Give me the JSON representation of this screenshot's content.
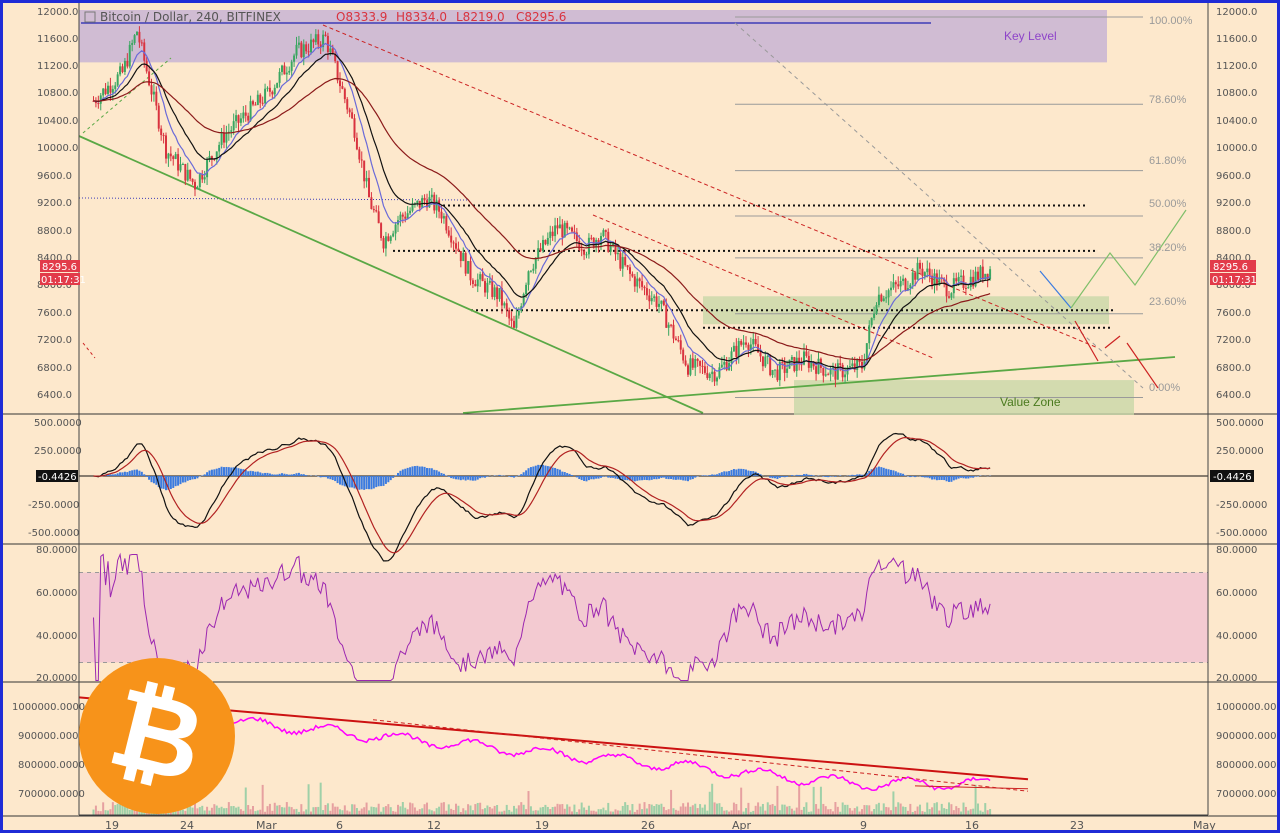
{
  "header": {
    "symbol": "Bitcoin / Dollar, 240, BITFINEX",
    "o": "O8333.9",
    "h": "H8334.0",
    "l": "L8219.0",
    "c": "C8295.6"
  },
  "colors": {
    "bg": "#fde8cc",
    "border": "#1f2bd6",
    "up": "#3aa661",
    "down": "#d9333f",
    "ema_fast": "#6a6ad8",
    "ema_mid": "#111111",
    "ema_slow": "#8b1a1a",
    "key_level": "#c8b4d4",
    "value_zone": "#c8d7a8",
    "macd_hist": "#3b7be0",
    "rsi_line": "#9c27b0",
    "rsi_band": "#f2c7d2",
    "obv_line": "#ff00ff",
    "fib": "#9a9a9a",
    "trend_green": "#5aa845",
    "trend_red": "#cc1111"
  },
  "price_panel": {
    "y_ticks": [
      "12000.0",
      "11600.0",
      "11200.0",
      "10800.0",
      "10400.0",
      "10000.0",
      "9600.0",
      "9200.0",
      "8800.0",
      "8400.0",
      "8000.0",
      "7600.0",
      "7200.0",
      "6800.0",
      "6400.0"
    ],
    "last_price": "8295.6",
    "countdown": "01:17:31",
    "key_level_label": "Key Level",
    "value_zone_label": "Value Zone",
    "fib_labels": [
      "100.00%",
      "78.60%",
      "61.80%",
      "50.00%",
      "38.20%",
      "23.60%",
      "0.00%"
    ]
  },
  "macd_panel": {
    "y_ticks": [
      "500.0000",
      "250.0000",
      "-250.0000",
      "-500.0000"
    ],
    "current": "-0.4426"
  },
  "rsi_panel": {
    "y_ticks": [
      "80.0000",
      "60.0000",
      "40.0000",
      "20.0000"
    ]
  },
  "obv_panel": {
    "y_ticks": [
      "1000000.0000",
      "900000.0000",
      "800000.0000",
      "700000.0000"
    ]
  },
  "x_axis": {
    "ticks": [
      "19",
      "24",
      "Mar",
      "6",
      "12",
      "19",
      "26",
      "Apr",
      "9",
      "16",
      "23",
      "May"
    ]
  },
  "logo": {
    "glyph": "₿",
    "name": "bitcoin-logo"
  },
  "chart_data": {
    "type": "candlestick",
    "title": "Bitcoin / Dollar, 240, BITFINEX",
    "ylim": [
      6200,
      12000
    ],
    "x": [
      "Feb 19",
      "Feb 24",
      "Mar 1",
      "Mar 6",
      "Mar 12",
      "Mar 19",
      "Mar 26",
      "Apr 1",
      "Apr 9",
      "Apr 16",
      "Apr 23",
      "May 1"
    ],
    "price_path": [
      [
        "Feb 17",
        10700
      ],
      [
        "Feb 19",
        11100
      ],
      [
        "Feb 20",
        11700
      ],
      [
        "Feb 22",
        10000
      ],
      [
        "Feb 24",
        9500
      ],
      [
        "Feb 26",
        10200
      ],
      [
        "Mar 1",
        10800
      ],
      [
        "Mar 3",
        11400
      ],
      [
        "Mar 5",
        11600
      ],
      [
        "Mar 7",
        10300
      ],
      [
        "Mar 8",
        9300
      ],
      [
        "Mar 9",
        8700
      ],
      [
        "Mar 10",
        9000
      ],
      [
        "Mar 12",
        9300
      ],
      [
        "Mar 13",
        9100
      ],
      [
        "Mar 15",
        8200
      ],
      [
        "Mar 17",
        7900
      ],
      [
        "Mar 18",
        7400
      ],
      [
        "Mar 19",
        8300
      ],
      [
        "Mar 21",
        8900
      ],
      [
        "Mar 23",
        8600
      ],
      [
        "Mar 24",
        8800
      ],
      [
        "Mar 26",
        8200
      ],
      [
        "Mar 28",
        7800
      ],
      [
        "Mar 30",
        6900
      ],
      [
        "Apr 1",
        6800
      ],
      [
        "Apr 3",
        7300
      ],
      [
        "Apr 5",
        6800
      ],
      [
        "Apr 7",
        7000
      ],
      [
        "Apr 9",
        6800
      ],
      [
        "Apr 11",
        6900
      ],
      [
        "Apr 12",
        7900
      ],
      [
        "Apr 14",
        8100
      ],
      [
        "Apr 15",
        8300
      ],
      [
        "Apr 17",
        8000
      ],
      [
        "Apr 19",
        8200
      ],
      [
        "Apr 20",
        8300
      ]
    ],
    "horizontal_levels": [
      9200,
      8550,
      7700,
      7450
    ],
    "fibonacci": [
      {
        "level": "100.00%",
        "price": 11900
      },
      {
        "level": "78.60%",
        "price": 10650
      },
      {
        "level": "61.80%",
        "price": 9700
      },
      {
        "level": "50.00%",
        "price": 9050
      },
      {
        "level": "38.20%",
        "price": 8450
      },
      {
        "level": "23.60%",
        "price": 7650
      },
      {
        "level": "0.00%",
        "price": 6450
      }
    ],
    "zones": [
      {
        "name": "Key Level",
        "from": 11250,
        "to": 12000
      },
      {
        "name": "Value Zone",
        "from": 6200,
        "to": 6700
      },
      {
        "name": "",
        "from": 7500,
        "to": 7900
      }
    ],
    "macd": {
      "ylim": [
        -600,
        600
      ],
      "current": -0.4426
    },
    "rsi": {
      "ylim": [
        20,
        80
      ],
      "band": [
        30,
        70
      ]
    },
    "obv": {
      "ylim": [
        640000,
        1080000
      ]
    }
  }
}
